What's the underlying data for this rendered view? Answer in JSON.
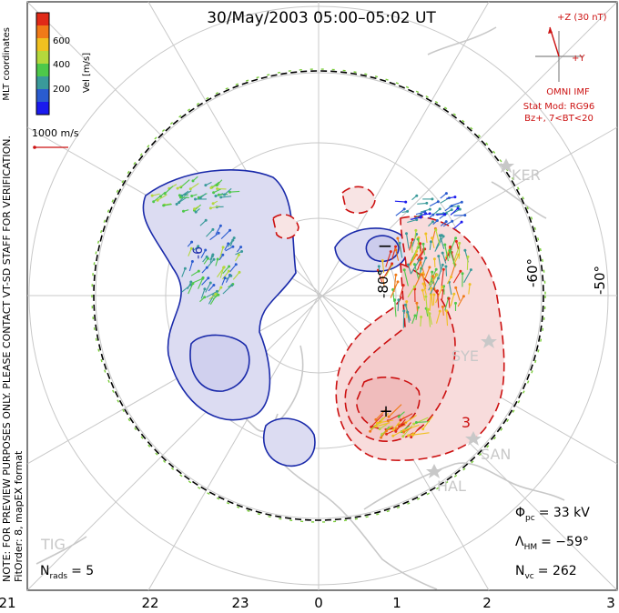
{
  "title": "30/May/2003 05:00–05:02 UT",
  "colorbar": {
    "ticks": [
      "600",
      "400",
      "200"
    ],
    "label": "Vel [m/s]",
    "colors": [
      "#1a1aee",
      "#2a5cd0",
      "#3a9a9a",
      "#4ec84a",
      "#b4d83c",
      "#f0c020",
      "#f07a18",
      "#e02a18"
    ]
  },
  "coord_label": "MLT coordinates",
  "scale": {
    "label": "1000 m/s",
    "color": "#cc1111"
  },
  "notes": {
    "preview": "NOTE: FOR PREVIEW PURPOSES ONLY. PLEASE CONTACT VT-SD STAFF FOR VERIFICATION.",
    "fit": "FitOrder: 8, mapEX format"
  },
  "imf": {
    "z_label": "+Z (30 nT)",
    "y_label": "+Y",
    "source": "OMNI IMF",
    "model": "Stat Mod: RG96",
    "condition": "Bz+, 7<BT<20",
    "color": "#cc1111"
  },
  "lat_labels": [
    "-80°",
    "-60°",
    "-50°"
  ],
  "contour_signs": {
    "minus": "−",
    "plus": "+"
  },
  "contour_numbers": [
    "3",
    "-6"
  ],
  "stations": [
    "KER",
    "SYE",
    "SAN",
    "HAL",
    "TIG"
  ],
  "stats": {
    "phi_pc": {
      "symbol": "Φ",
      "sub": "pc",
      "value": "= 33 kV"
    },
    "lambda_hm": {
      "symbol": "Λ",
      "sub": "HM",
      "value": "= −59°"
    },
    "n_vc": {
      "symbol": "N",
      "sub": "vc",
      "value": "= 262"
    },
    "n_rads": {
      "symbol": "N",
      "sub": "rads",
      "value": "= 5"
    }
  },
  "mlt_ticks": [
    "21",
    "22",
    "23",
    "0",
    "1",
    "2",
    "3"
  ],
  "colors": {
    "negative_fill": "#dcdcf2",
    "negative_line": "#1a2aaa",
    "positive_fill": "#f8dcdc",
    "positive_line": "#cc1111",
    "coast": "#c8c8c8",
    "grid": "#c8c8c8"
  }
}
